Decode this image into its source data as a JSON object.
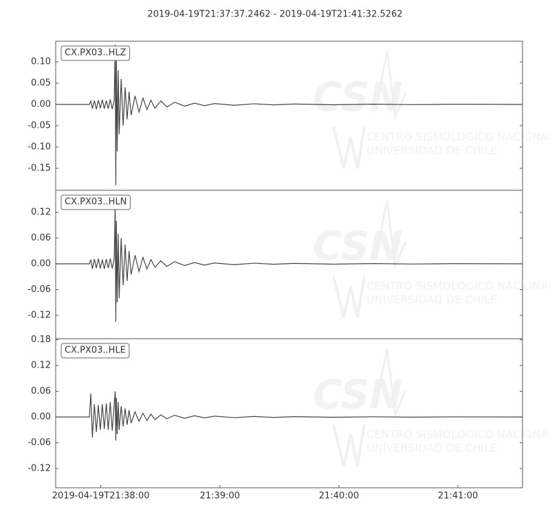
{
  "title": "2019-04-19T21:37:37.2462  -  2019-04-19T21:41:32.5262",
  "watermark": {
    "logo": "CSN",
    "line1": "CENTRO SISMOLOGICO NACIONAL",
    "line2": "UNIVERSIDAD DE CHILE"
  },
  "chart_data": [
    {
      "type": "line",
      "xlim": [
        0,
        235.28
      ],
      "ylim": [
        -0.2016,
        0.1484
      ],
      "yticks": [
        -0.15,
        {
          "value": -0.1,
          "label": "-0.10"
        },
        -0.05,
        {
          "value": 0,
          "label": "0.00"
        },
        0.05,
        {
          "value": 0.1,
          "label": "0.10"
        }
      ],
      "x": [
        0,
        17,
        17.7,
        18.5,
        19.5,
        20.5,
        21.5,
        22.5,
        23.5,
        24.5,
        25.5,
        26.5,
        27.5,
        28.5,
        29.5,
        30.0,
        30.3,
        30.6,
        31,
        31.5,
        32,
        33,
        34,
        35,
        36,
        37,
        38,
        40,
        42,
        44,
        46,
        48,
        50,
        53,
        56,
        60,
        65,
        70,
        75,
        80,
        90,
        100,
        110,
        120,
        140,
        160,
        180,
        200,
        235.28
      ],
      "series": [
        {
          "name": "CX.PX03..HLZ",
          "color": "#444444",
          "values": [
            0,
            0,
            0.008,
            -0.01,
            0.009,
            -0.011,
            0.01,
            -0.009,
            0.011,
            -0.01,
            0.009,
            -0.01,
            0.012,
            -0.011,
            0.01,
            0.14,
            -0.19,
            0.12,
            -0.11,
            0.08,
            -0.07,
            0.06,
            -0.05,
            0.04,
            -0.035,
            0.03,
            -0.025,
            0.02,
            -0.018,
            0.015,
            -0.012,
            0.01,
            -0.009,
            0.008,
            -0.006,
            0.005,
            -0.004,
            0.003,
            -0.003,
            0.002,
            -0.002,
            0.0015,
            -0.001,
            0.001,
            -0.0008,
            0.0006,
            -0.0005,
            0.0004,
            0
          ]
        }
      ]
    },
    {
      "type": "line",
      "xlim": [
        0,
        235.28
      ],
      "ylim": [
        -0.1744,
        0.1712
      ],
      "yticks": [
        -0.12,
        -0.06,
        {
          "value": 0,
          "label": "0.00"
        },
        0.06,
        0.12
      ],
      "x": [
        0,
        17,
        17.7,
        18.5,
        19.5,
        20.5,
        21.5,
        22.5,
        23.5,
        24.5,
        25.5,
        26.5,
        27.5,
        28.5,
        29.5,
        30.0,
        30.3,
        30.6,
        31,
        31.5,
        32,
        33,
        34,
        35,
        36,
        37,
        38,
        40,
        42,
        44,
        46,
        48,
        50,
        53,
        56,
        60,
        65,
        70,
        75,
        80,
        90,
        100,
        110,
        120,
        140,
        160,
        180,
        200,
        235.28
      ],
      "series": [
        {
          "name": "CX.PX03..HLN",
          "color": "#444444",
          "values": [
            0,
            0,
            0.01,
            -0.012,
            0.011,
            -0.01,
            0.012,
            -0.011,
            0.01,
            -0.012,
            0.011,
            -0.01,
            0.012,
            -0.011,
            0.012,
            0.14,
            -0.135,
            0.1,
            -0.09,
            0.07,
            -0.08,
            0.06,
            -0.05,
            0.045,
            -0.04,
            0.03,
            -0.025,
            0.02,
            -0.018,
            0.015,
            -0.012,
            0.01,
            -0.008,
            0.007,
            -0.006,
            0.005,
            -0.004,
            0.003,
            -0.003,
            0.002,
            -0.002,
            0.0015,
            -0.001,
            0.001,
            -0.0008,
            0.0006,
            -0.0005,
            0.0004,
            0
          ]
        }
      ]
    },
    {
      "type": "line",
      "xlim": [
        0,
        235.28
      ],
      "ylim": [
        -0.1648,
        0.1824
      ],
      "yticks": [
        -0.12,
        -0.06,
        {
          "value": 0,
          "label": "0.00"
        },
        0.06,
        0.12,
        0.18
      ],
      "xticks": [
        {
          "value": 22.7538,
          "label": "2019-04-19T21:38:00"
        },
        {
          "value": 82.7538,
          "label": "21:39:00"
        },
        {
          "value": 142.7538,
          "label": "21:40:00"
        },
        {
          "value": 202.7538,
          "label": "21:41:00"
        }
      ],
      "x": [
        0,
        17,
        17.7,
        18.5,
        19.5,
        20.5,
        21.5,
        22.5,
        23.5,
        24.5,
        25.5,
        26.5,
        27.5,
        28.5,
        29.5,
        30.0,
        30.3,
        30.6,
        31,
        31.5,
        32,
        33,
        34,
        35,
        36,
        37,
        38,
        40,
        42,
        44,
        46,
        48,
        50,
        53,
        56,
        60,
        65,
        70,
        75,
        80,
        90,
        100,
        110,
        120,
        140,
        160,
        180,
        200,
        235.28
      ],
      "series": [
        {
          "name": "CX.PX03..HLE",
          "color": "#444444",
          "values": [
            0,
            0,
            0.055,
            -0.048,
            0.03,
            -0.035,
            0.028,
            -0.03,
            0.03,
            -0.028,
            0.032,
            -0.03,
            0.035,
            -0.032,
            0.03,
            0.06,
            -0.055,
            0.045,
            -0.04,
            0.035,
            -0.03,
            0.025,
            -0.022,
            0.02,
            -0.018,
            0.016,
            -0.014,
            0.012,
            -0.01,
            0.009,
            -0.008,
            0.007,
            -0.006,
            0.005,
            -0.004,
            0.004,
            -0.003,
            0.003,
            -0.002,
            0.002,
            -0.0015,
            0.0012,
            -0.001,
            0.0008,
            -0.0006,
            0.0005,
            -0.0004,
            0.0003,
            0
          ]
        }
      ]
    }
  ]
}
